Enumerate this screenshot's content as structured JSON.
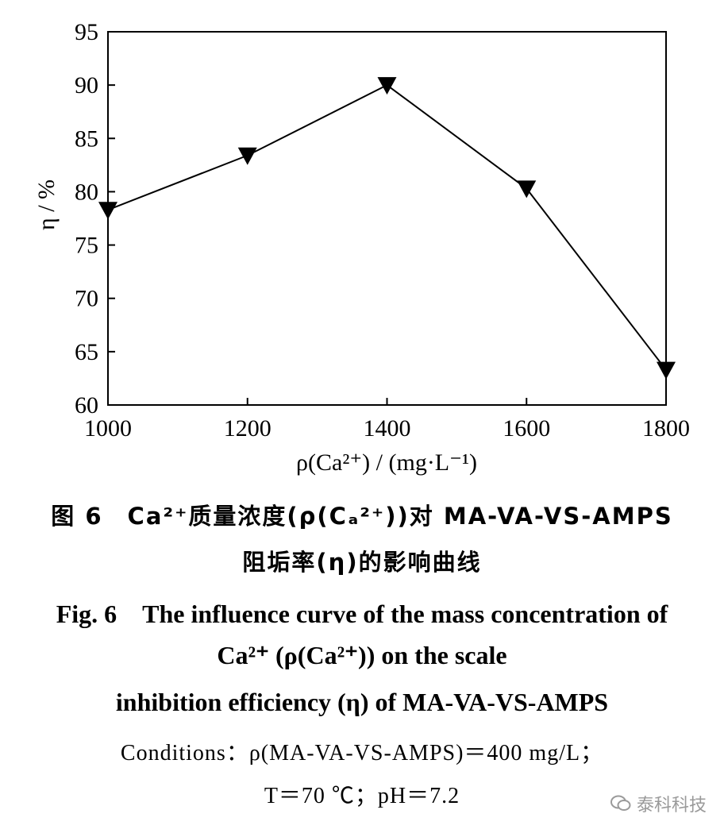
{
  "chart_data": {
    "type": "line",
    "x": [
      1000,
      1200,
      1400,
      1600,
      1800
    ],
    "y": [
      78.3,
      83.4,
      90.0,
      80.3,
      63.3
    ],
    "xlabel": "ρ(Ca²⁺) / (mg·L⁻¹)",
    "ylabel": "η / %",
    "xlim": [
      1000,
      1800
    ],
    "ylim": [
      60,
      95
    ],
    "xticks": [
      "1000",
      "1200",
      "1400",
      "1600",
      "1800"
    ],
    "yticks": [
      "60",
      "65",
      "70",
      "75",
      "80",
      "85",
      "90",
      "95"
    ],
    "marker": "down-triangle",
    "grid": false
  },
  "caption": {
    "cn_line1": "图 6　Ca²⁺质量浓度(ρ(Cₐ²⁺))对 MA-VA-VS-AMPS",
    "cn_line2": "阻垢率(η)的影响曲线",
    "en_line1": "Fig. 6　The influence curve of the mass concentration of",
    "en_line2": "Ca²⁺ (ρ(Ca²⁺)) on the scale",
    "en_line3": "inhibition efficiency (η) of MA-VA-VS-AMPS",
    "cond_line1": "Conditions：ρ(MA-VA-VS-AMPS)＝400 mg/L；",
    "cond_line2": "T＝70 ℃；pH＝7.2"
  },
  "watermark": {
    "text": "泰科科技",
    "icon": "wechat-icon"
  }
}
